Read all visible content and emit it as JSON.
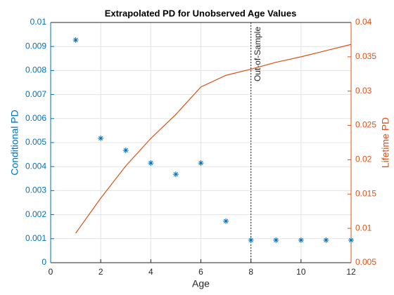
{
  "chart_data": {
    "type": "combo",
    "title": "Extrapolated PD for Unobserved Age Values",
    "xlabel": "Age",
    "ylabel": "Conditional PD",
    "y2label": "Lifetime PD",
    "x": [
      1,
      2,
      3,
      4,
      5,
      6,
      7,
      8,
      9,
      10,
      11,
      12
    ],
    "series": [
      {
        "name": "Conditional PD",
        "type": "scatter",
        "color": "#0072BD",
        "values": [
          0.00927,
          0.00518,
          0.00468,
          0.00415,
          0.00368,
          0.00415,
          0.00173,
          0.00094,
          0.00094,
          0.00094,
          0.00094,
          0.00094
        ]
      },
      {
        "name": "Lifetime PD",
        "type": "line",
        "axis": "y2",
        "color": "#D95319",
        "values": [
          0.0093,
          0.0144,
          0.0191,
          0.0231,
          0.0266,
          0.0306,
          0.0323,
          0.0332,
          0.0342,
          0.035,
          0.0359,
          0.0368
        ]
      }
    ],
    "xlim": [
      0,
      12
    ],
    "xticks": [
      0,
      2,
      4,
      6,
      8,
      10,
      12
    ],
    "ylim": [
      0,
      0.01
    ],
    "yticks": [
      0,
      0.001,
      0.002,
      0.003,
      0.004,
      0.005,
      0.006,
      0.007,
      0.008,
      0.009,
      0.01
    ],
    "y2lim": [
      0.005,
      0.04
    ],
    "y2ticks": [
      0.005,
      0.01,
      0.015,
      0.02,
      0.025,
      0.03,
      0.035,
      0.04
    ],
    "grid": true,
    "annotation": {
      "text": "Out-of-Sample",
      "x": 8
    }
  }
}
